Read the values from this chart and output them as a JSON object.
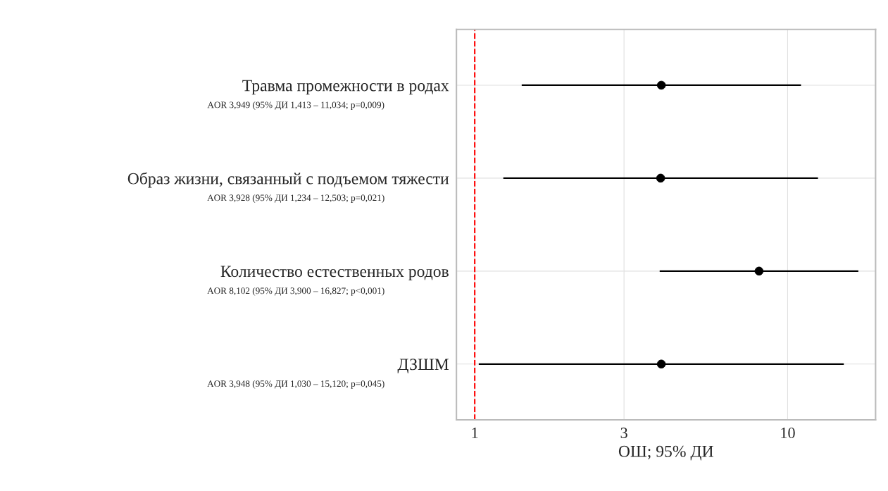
{
  "chart_data": {
    "type": "scatter",
    "xlabel": "ОШ; 95% ДИ",
    "categories": [
      "Травма промежности в родах",
      "Образ жизни, связанный с подъемом тяжести",
      "Количество естественных родов",
      "ДЗШМ"
    ],
    "values": [
      3.949,
      3.928,
      8.102,
      3.948
    ],
    "errors": [
      [
        1.413,
        11.034
      ],
      [
        1.234,
        12.503
      ],
      [
        3.9,
        16.827
      ],
      [
        1.03,
        15.12
      ]
    ],
    "color": "#000000",
    "marker": "circle",
    "orientation": "horizontal",
    "log": "x",
    "xlim": [
      0.874,
      19.1
    ],
    "xticks": [
      1,
      3,
      10
    ],
    "grid": true,
    "ref_lines": [
      {
        "axis": "x",
        "value": 1,
        "color": "#ff0000",
        "line_style": "dashed"
      }
    ],
    "value_labels": [
      "AOR 3,949 (95% ДИ 1,413 – 11,034; p=0,009)",
      "AOR 3,928 (95% ДИ 1,234 – 12,503; p=0,021)",
      "AOR 8,102 (95% ДИ 3,900 – 16,827; p<0,001)",
      "AOR 3,948 (95% ДИ 1,030 – 15,120; p=0,045)"
    ]
  }
}
